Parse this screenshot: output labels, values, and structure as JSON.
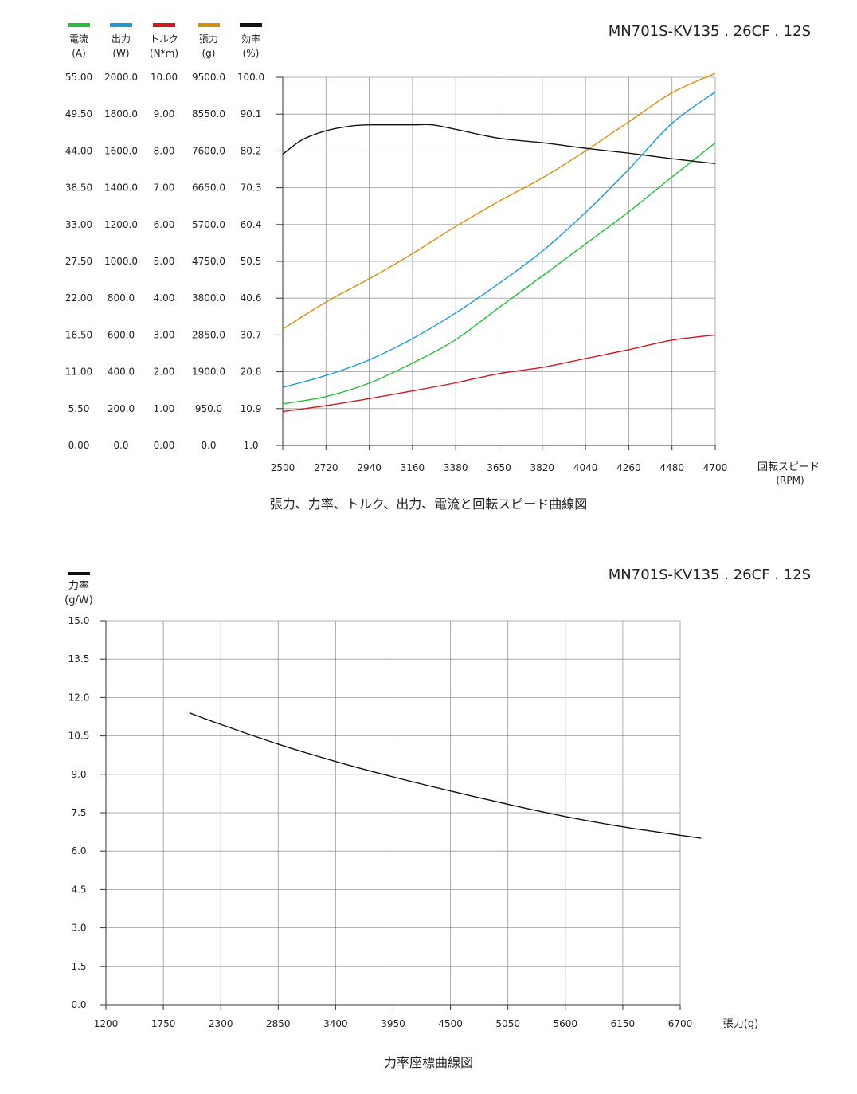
{
  "chart_data": [
    {
      "type": "line",
      "model": "MN701S-KV135 . 26CF . 12S",
      "title": "張力、力率、トルク、出力、電流と回転スピード曲線図",
      "xlabel": "回転スピード",
      "xunit": "(RPM)",
      "x_ticks": [
        "2500",
        "2720",
        "2940",
        "3160",
        "3380",
        "3650",
        "3820",
        "4040",
        "4260",
        "4480",
        "4700"
      ],
      "grid": true,
      "axes": [
        {
          "key": "current",
          "label": "電流",
          "unit": "(A)",
          "color": "#22c03a",
          "ticks": [
            "0.00",
            "5.50",
            "11.00",
            "16.50",
            "22.00",
            "27.50",
            "33.00",
            "38.50",
            "44.00",
            "49.50",
            "55.00"
          ],
          "ylim": [
            0,
            55
          ]
        },
        {
          "key": "power",
          "label": "出力",
          "unit": "(W)",
          "color": "#1b9ad6",
          "ticks": [
            "0.0",
            "200.0",
            "400.0",
            "600.0",
            "800.0",
            "1000.0",
            "1200.0",
            "1400.0",
            "1600.0",
            "1800.0",
            "2000.0"
          ],
          "ylim": [
            0,
            2000
          ]
        },
        {
          "key": "torque",
          "label": "トルク",
          "unit": "(N*m)",
          "color": "#d4161c",
          "ticks": [
            "0.00",
            "1.00",
            "2.00",
            "3.00",
            "4.00",
            "5.00",
            "6.00",
            "7.00",
            "8.00",
            "9.00",
            "10.00"
          ],
          "ylim": [
            0,
            10
          ]
        },
        {
          "key": "thrust",
          "label": "張力",
          "unit": "(g)",
          "color": "#d4920a",
          "ticks": [
            "0.0",
            "950.0",
            "1900.0",
            "2850.0",
            "3800.0",
            "4750.0",
            "5700.0",
            "6650.0",
            "7600.0",
            "8550.0",
            "9500.0"
          ],
          "ylim": [
            0,
            9500
          ]
        },
        {
          "key": "efficiency",
          "label": "効率",
          "unit": "(%)",
          "color": "#111111",
          "ticks": [
            "1.0",
            "10.9",
            "20.8",
            "30.7",
            "40.6",
            "50.5",
            "60.4",
            "70.3",
            "80.2",
            "90.1",
            "100.0"
          ],
          "ylim": [
            1,
            100
          ]
        }
      ],
      "series": [
        {
          "name": "電流",
          "axis": "current",
          "x": [
            2500,
            2720,
            2940,
            3160,
            3380,
            3650,
            3820,
            4040,
            4260,
            4480,
            4700
          ],
          "values": [
            6.2,
            7.3,
            9.3,
            12.3,
            15.8,
            20.6,
            25.3,
            30.1,
            34.9,
            40.1,
            45.2
          ]
        },
        {
          "name": "出力",
          "axis": "power",
          "x": [
            2500,
            2720,
            2940,
            3160,
            3380,
            3650,
            3820,
            4040,
            4260,
            4480,
            4700
          ],
          "values": [
            315,
            380,
            465,
            580,
            720,
            880,
            1055,
            1265,
            1500,
            1750,
            1920
          ]
        },
        {
          "name": "トルク",
          "axis": "torque",
          "x": [
            2500,
            2720,
            2940,
            3160,
            3380,
            3650,
            3820,
            4040,
            4260,
            4480,
            4700
          ],
          "values": [
            0.92,
            1.08,
            1.27,
            1.48,
            1.7,
            1.95,
            2.12,
            2.36,
            2.6,
            2.86,
            3.0
          ]
        },
        {
          "name": "張力",
          "axis": "thrust",
          "x": [
            2500,
            2720,
            2940,
            3160,
            3380,
            3650,
            3820,
            4040,
            4260,
            4480,
            4700
          ],
          "values": [
            3000,
            3700,
            4300,
            4950,
            5650,
            6300,
            6900,
            7600,
            8350,
            9100,
            9600
          ]
        },
        {
          "name": "効率",
          "axis": "efficiency",
          "x": [
            2500,
            2600,
            2720,
            2850,
            2940,
            3050,
            3160,
            3260,
            3380,
            3650,
            3820,
            4040,
            4260,
            4480,
            4700
          ],
          "values": [
            79.3,
            83.2,
            85.6,
            86.9,
            87.2,
            87.2,
            87.2,
            87.2,
            86.0,
            83.6,
            82.4,
            80.9,
            79.6,
            78.1,
            76.8
          ]
        }
      ]
    },
    {
      "type": "line",
      "model": "MN701S-KV135 . 26CF . 12S",
      "title": "力率座標曲線図",
      "series_label": "力率",
      "yunit": "(g/W)",
      "xlabel": "張力(g)",
      "color": "#111111",
      "x_ticks": [
        "1200",
        "1750",
        "2300",
        "2850",
        "3400",
        "3950",
        "4500",
        "5050",
        "5600",
        "6150",
        "6700"
      ],
      "y_ticks": [
        "0.0",
        "1.5",
        "3.0",
        "4.5",
        "6.0",
        "7.5",
        "9.0",
        "10.5",
        "12.0",
        "13.5",
        "15.0"
      ],
      "xlim": [
        1200,
        6700
      ],
      "ylim": [
        0,
        15
      ],
      "grid": true,
      "series": [
        {
          "name": "力率",
          "x": [
            2000,
            2300,
            2850,
            3400,
            3950,
            4500,
            5050,
            5600,
            6150,
            6700,
            6900
          ],
          "values": [
            11.4,
            10.95,
            10.18,
            9.5,
            8.9,
            8.35,
            7.83,
            7.35,
            6.95,
            6.62,
            6.5
          ]
        }
      ]
    }
  ]
}
